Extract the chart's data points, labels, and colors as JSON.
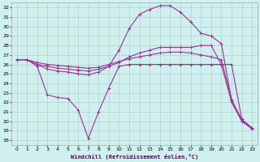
{
  "xlabel": "Windchill (Refroidissement éolien,°C)",
  "bg_color": "#cff0ee",
  "grid_color": "#aaccbb",
  "line_color": "#993399",
  "ylim": [
    17.5,
    32.5
  ],
  "xlim": [
    -0.5,
    23.5
  ],
  "yticks": [
    18,
    19,
    20,
    21,
    22,
    23,
    24,
    25,
    26,
    27,
    28,
    29,
    30,
    31,
    32
  ],
  "xticks": [
    0,
    1,
    2,
    3,
    4,
    5,
    6,
    7,
    8,
    9,
    10,
    11,
    12,
    13,
    14,
    15,
    16,
    17,
    18,
    19,
    20,
    21,
    22,
    23
  ],
  "series": [
    {
      "x": [
        0,
        1,
        2,
        3,
        4,
        5,
        6,
        7,
        8,
        9,
        10,
        11,
        12,
        13,
        14,
        15,
        16,
        17,
        18,
        19,
        20,
        21,
        22,
        23
      ],
      "y": [
        26.5,
        26.5,
        25.8,
        22.8,
        22.5,
        22.4,
        21.2,
        18.2,
        21.0,
        23.5,
        25.8,
        26.0,
        26.0,
        26.0,
        26.0,
        26.0,
        26.0,
        26.0,
        26.0,
        26.0,
        26.0,
        26.0,
        20.2,
        19.2
      ]
    },
    {
      "x": [
        0,
        1,
        2,
        3,
        4,
        5,
        6,
        7,
        8,
        9,
        10,
        11,
        12,
        13,
        14,
        15,
        16,
        17,
        18,
        19,
        20,
        21,
        22,
        23
      ],
      "y": [
        26.5,
        26.5,
        26.2,
        26.0,
        25.9,
        25.8,
        25.7,
        25.6,
        25.7,
        26.0,
        26.3,
        26.6,
        26.8,
        27.0,
        27.2,
        27.3,
        27.3,
        27.2,
        27.0,
        26.8,
        26.5,
        22.3,
        20.0,
        19.3
      ]
    },
    {
      "x": [
        0,
        1,
        2,
        3,
        4,
        5,
        6,
        7,
        8,
        9,
        10,
        11,
        12,
        13,
        14,
        15,
        16,
        17,
        18,
        19,
        20,
        21,
        22,
        23
      ],
      "y": [
        26.5,
        26.5,
        26.0,
        25.5,
        25.3,
        25.2,
        25.0,
        24.9,
        25.2,
        25.8,
        27.5,
        29.8,
        31.3,
        31.8,
        32.2,
        32.2,
        31.5,
        30.5,
        29.3,
        29.0,
        28.2,
        22.2,
        20.2,
        19.3
      ]
    },
    {
      "x": [
        0,
        1,
        2,
        3,
        4,
        5,
        6,
        7,
        8,
        9,
        10,
        11,
        12,
        13,
        14,
        15,
        16,
        17,
        18,
        19,
        20,
        21,
        22,
        23
      ],
      "y": [
        26.5,
        26.5,
        26.0,
        25.8,
        25.6,
        25.5,
        25.4,
        25.3,
        25.5,
        25.8,
        26.2,
        26.8,
        27.2,
        27.5,
        27.8,
        27.8,
        27.8,
        27.8,
        28.0,
        28.0,
        26.0,
        22.0,
        20.0,
        19.2
      ]
    }
  ]
}
